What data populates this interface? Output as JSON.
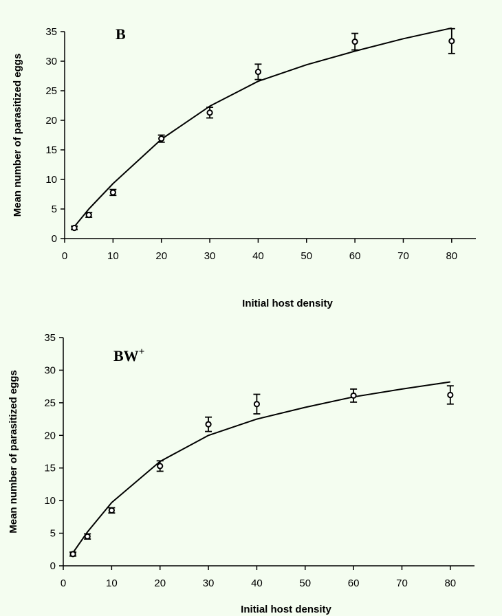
{
  "colors": {
    "background": "#f4fdf0",
    "ink": "#000000"
  },
  "chart_data": [
    {
      "type": "scatter",
      "panel_label": "B",
      "panel_label_sup": "",
      "xlabel": "Initial host density",
      "ylabel": "Mean number of parasitized eggs",
      "xlim": [
        0,
        85
      ],
      "ylim": [
        0,
        35
      ],
      "xticks": [
        0,
        10,
        20,
        30,
        40,
        50,
        60,
        70,
        80
      ],
      "yticks": [
        0,
        5,
        10,
        15,
        20,
        25,
        30,
        35
      ],
      "grid": false,
      "series": [
        {
          "kind": "points-with-error-bars",
          "x": [
            2,
            5,
            10,
            20,
            30,
            40,
            60,
            80
          ],
          "y": [
            1.8,
            4.0,
            7.8,
            16.9,
            21.3,
            28.2,
            33.3,
            33.4
          ],
          "error": [
            0.3,
            0.4,
            0.5,
            0.6,
            0.9,
            1.3,
            1.4,
            2.1
          ]
        },
        {
          "kind": "fitted-curve",
          "x": [
            2,
            5,
            10,
            20,
            30,
            40,
            50,
            60,
            70,
            80
          ],
          "y": [
            2.0,
            5.0,
            9.3,
            16.8,
            22.4,
            26.6,
            29.4,
            31.7,
            33.8,
            35.6
          ]
        }
      ]
    },
    {
      "type": "scatter",
      "panel_label": "BW",
      "panel_label_sup": "+",
      "xlabel": "Initial host density",
      "ylabel": "Mean number of parasitized eggs",
      "xlim": [
        0,
        85
      ],
      "ylim": [
        0,
        35
      ],
      "xticks": [
        0,
        10,
        20,
        30,
        40,
        50,
        60,
        70,
        80
      ],
      "yticks": [
        0,
        5,
        10,
        15,
        20,
        25,
        30,
        35
      ],
      "grid": false,
      "series": [
        {
          "kind": "points-with-error-bars",
          "x": [
            2,
            5,
            10,
            20,
            30,
            40,
            60,
            80
          ],
          "y": [
            1.8,
            4.5,
            8.5,
            15.3,
            21.7,
            24.8,
            26.1,
            26.2
          ],
          "error": [
            0.3,
            0.4,
            0.4,
            0.8,
            1.1,
            1.5,
            1.0,
            1.4
          ]
        },
        {
          "kind": "fitted-curve",
          "x": [
            2,
            5,
            10,
            20,
            30,
            40,
            50,
            60,
            70,
            80
          ],
          "y": [
            2.0,
            5.2,
            9.7,
            16.0,
            20.0,
            22.5,
            24.3,
            25.9,
            27.1,
            28.2
          ]
        }
      ]
    }
  ]
}
